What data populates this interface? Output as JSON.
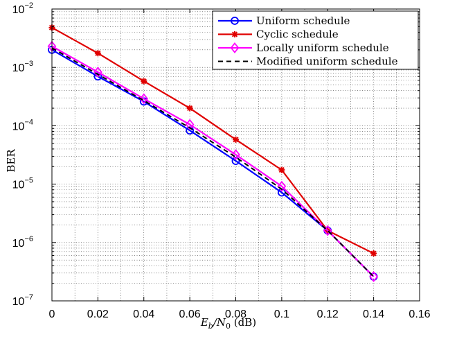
{
  "chart_data": {
    "type": "line",
    "x_scale": "linear",
    "y_scale": "log",
    "xlim": [
      0,
      0.16
    ],
    "ylim": [
      1e-07,
      0.01
    ],
    "xticks": [
      0,
      0.02,
      0.04,
      0.06,
      0.08,
      0.1,
      0.12,
      0.14,
      0.16
    ],
    "xtick_labels": [
      "0",
      "0.02",
      "0.04",
      "0.06",
      "0.08",
      "0.1",
      "0.12",
      "0.14",
      "0.16"
    ],
    "ytick_exponents": [
      -7,
      -6,
      -5,
      -4,
      -3,
      -2
    ],
    "ytick_base": "10",
    "xlabel": {
      "main": "E",
      "sub1": "b",
      "slash": "/N",
      "sub2": "0",
      "unit": " (dB)"
    },
    "ylabel": "BER",
    "grid": "dotted, major and minor",
    "legend_position": "top-right",
    "series": [
      {
        "name": "Uniform schedule",
        "color": "#0000ff",
        "marker": "circle",
        "dash": "solid",
        "x": [
          0,
          0.02,
          0.04,
          0.06,
          0.08,
          0.1,
          0.12,
          0.14
        ],
        "y": [
          0.002,
          0.0007,
          0.00026,
          8.3e-05,
          2.5e-05,
          7.2e-06,
          1.6e-06,
          2.6e-07
        ]
      },
      {
        "name": "Cyclic schedule",
        "color": "#e00000",
        "marker": "star",
        "dash": "solid",
        "x": [
          0,
          0.02,
          0.04,
          0.06,
          0.08,
          0.1,
          0.12,
          0.14
        ],
        "y": [
          0.0048,
          0.00175,
          0.00058,
          0.0002,
          5.8e-05,
          1.75e-05,
          1.6e-06,
          6.5e-07
        ]
      },
      {
        "name": "Locally uniform schedule",
        "color": "#ff00ff",
        "marker": "diamond",
        "dash": "solid",
        "x": [
          0,
          0.02,
          0.04,
          0.06,
          0.08,
          0.1,
          0.12,
          0.14
        ],
        "y": [
          0.0023,
          0.00083,
          0.00029,
          0.000105,
          3.2e-05,
          9.2e-06,
          1.6e-06,
          2.6e-07
        ]
      },
      {
        "name": "Modified uniform schedule",
        "color": "#000000",
        "marker": "none",
        "dash": "dashed",
        "x": [
          0,
          0.02,
          0.04,
          0.06,
          0.08,
          0.1,
          0.12,
          0.14
        ],
        "y": [
          0.00215,
          0.00076,
          0.00027,
          9.2e-05,
          2.9e-05,
          8.2e-06,
          1.6e-06,
          2.6e-07
        ]
      }
    ]
  }
}
